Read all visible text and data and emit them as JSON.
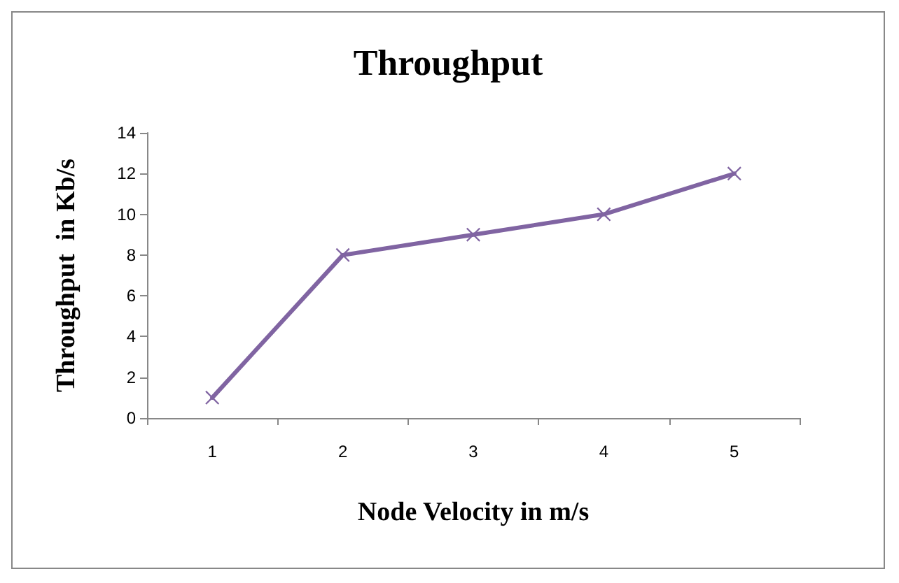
{
  "chart_data": {
    "type": "line",
    "title": "Throughput",
    "xlabel": "Node Velocity in m/s",
    "ylabel": "Throughput  in Kb/s",
    "categories": [
      "1",
      "2",
      "3",
      "4",
      "5"
    ],
    "series": [
      {
        "color": "#8064a2",
        "values": [
          1,
          8,
          9,
          10,
          12
        ]
      }
    ],
    "ylim": [
      0,
      14
    ],
    "yticks": [
      0,
      2,
      4,
      6,
      8,
      10,
      12,
      14
    ],
    "grid": false,
    "marker": "cross",
    "line_style": "solid"
  }
}
